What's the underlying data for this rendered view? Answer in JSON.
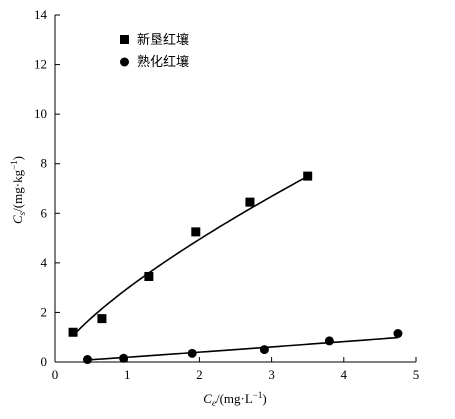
{
  "chart_data": {
    "type": "scatter",
    "xlabel": {
      "var": "C",
      "sub": "e",
      "unit_open": "/(mg·L",
      "unit_sup": "−1",
      "unit_close": ")"
    },
    "ylabel": {
      "var": "C",
      "sub": "s",
      "unit_open": "/(mg·kg",
      "unit_sup": "−1",
      "unit_close": ")"
    },
    "xlim": [
      0,
      5
    ],
    "ylim": [
      0,
      14
    ],
    "xticks": [
      "0",
      "1",
      "2",
      "3",
      "4",
      "5"
    ],
    "yticks": [
      "0",
      "2",
      "4",
      "6",
      "8",
      "10",
      "12",
      "14"
    ],
    "legend_position": "top-left",
    "grid": false,
    "series": [
      {
        "name": "新垦红壤",
        "marker": "square",
        "x": [
          0.25,
          0.65,
          1.3,
          1.95,
          2.7,
          3.5
        ],
        "y": [
          1.2,
          1.75,
          3.45,
          5.25,
          6.45,
          7.5
        ],
        "fit_curve": true
      },
      {
        "name": "熟化红壤",
        "marker": "circle",
        "x": [
          0.45,
          0.95,
          1.9,
          2.9,
          3.8,
          4.75
        ],
        "y": [
          0.1,
          0.15,
          0.35,
          0.5,
          0.85,
          1.15
        ],
        "fit_curve": true
      }
    ]
  },
  "colors": {
    "ink": "#000000",
    "background": "#ffffff"
  }
}
